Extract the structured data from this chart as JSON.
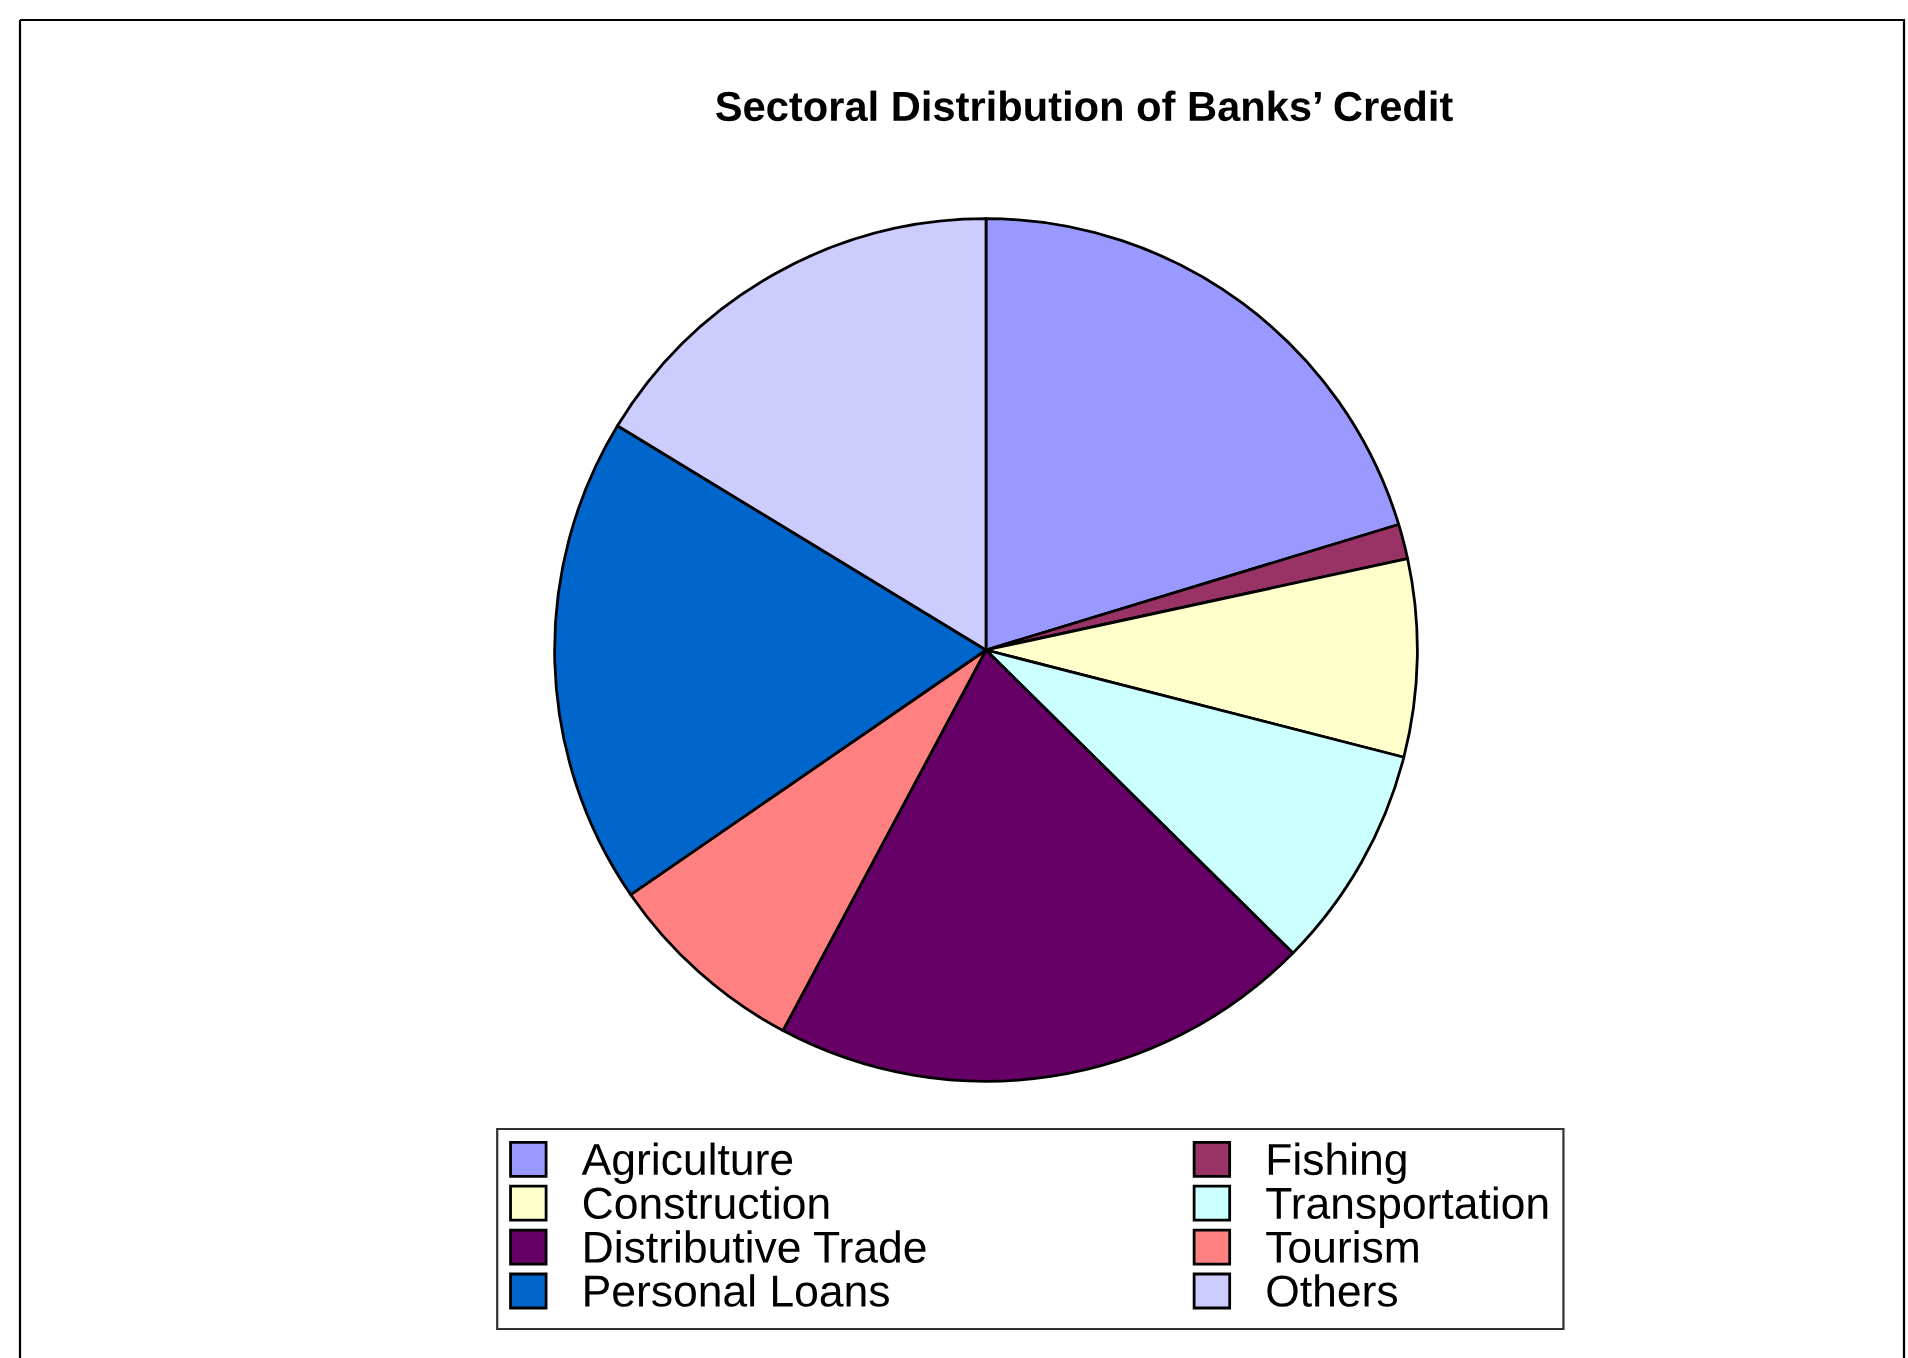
{
  "chart_data": {
    "type": "pie",
    "title": "Sectoral Distribution of Banks’ Credit",
    "categories": [
      "Agriculture",
      "Fishing",
      "Construction",
      "Transportation",
      "Distributive Trade",
      "Tourism",
      "Personal Loans",
      "Others"
    ],
    "values": [
      20.3,
      1.3,
      7.4,
      8.4,
      20.4,
      7.6,
      18.3,
      16.3
    ],
    "colors": [
      "#9999ff",
      "#993366",
      "#ffffcc",
      "#ccffff",
      "#660066",
      "#ff8080",
      "#0066cc",
      "#ccccff"
    ],
    "legend": "bottom"
  }
}
